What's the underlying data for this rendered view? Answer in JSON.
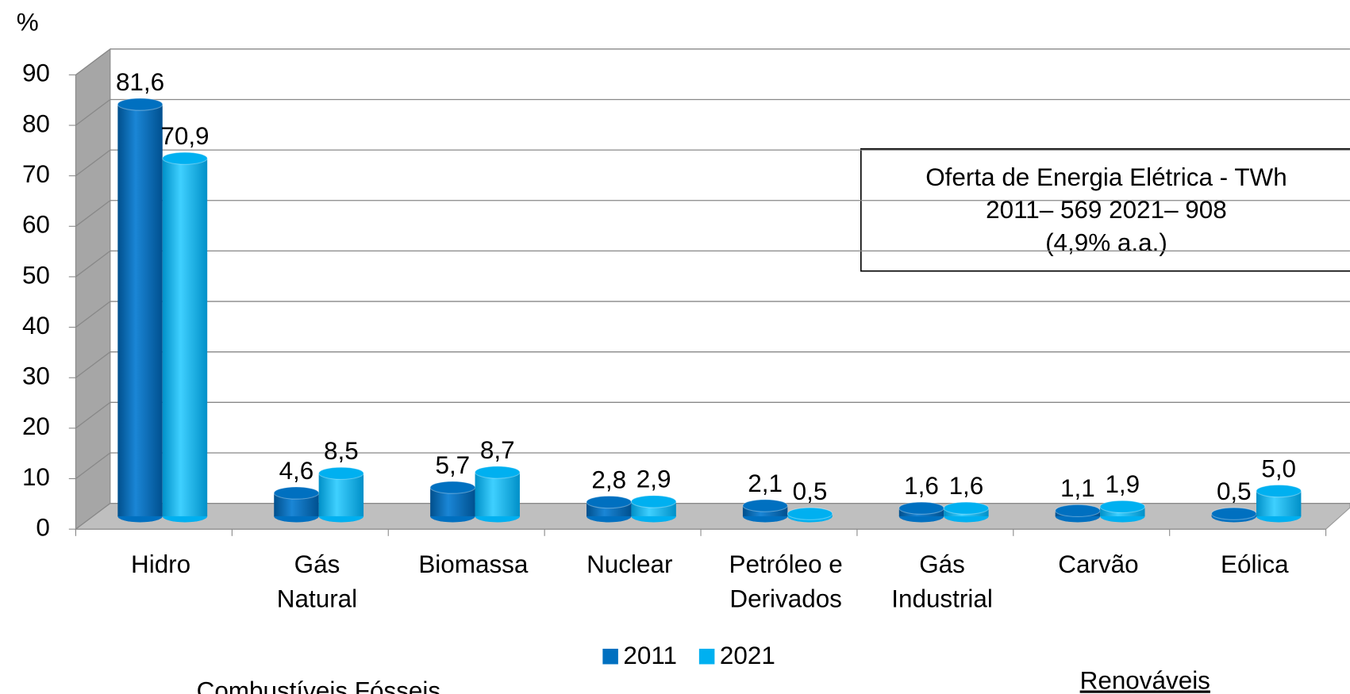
{
  "chart_data": {
    "type": "bar3d",
    "ylabel": "%",
    "categories": [
      [
        "Hidro"
      ],
      [
        "Gás",
        "Natural"
      ],
      [
        "Biomassa"
      ],
      [
        "Nuclear"
      ],
      [
        "Petróleo e",
        "Derivados"
      ],
      [
        "Gás",
        "Industrial"
      ],
      [
        "Carvão"
      ],
      [
        "Eólica"
      ]
    ],
    "series": [
      {
        "name": "2011",
        "color": "#0070c0",
        "values": [
          81.6,
          4.6,
          5.7,
          2.8,
          2.1,
          1.6,
          1.1,
          0.5
        ],
        "value_labels": [
          "81,6",
          "4,6",
          "5,7",
          "2,8",
          "2,1",
          "1,6",
          "1,1",
          "0,5"
        ]
      },
      {
        "name": "2021",
        "color": "#00b0f0",
        "values": [
          70.9,
          8.5,
          8.7,
          2.9,
          0.5,
          1.6,
          1.9,
          5.0
        ],
        "value_labels": [
          "70,9",
          "8,5",
          "8,7",
          "2,9",
          "0,5",
          "1,6",
          "1,9",
          "5,0"
        ]
      }
    ],
    "ylim": [
      0,
      90
    ],
    "yticks": [
      0,
      10,
      20,
      30,
      40,
      50,
      60,
      70,
      80,
      90
    ],
    "grid": true,
    "legend": "bottom",
    "annotation": [
      "Oferta de Energia Elétrica - TWh",
      "2011– 569 2021– 908",
      "(4,9% a.a.)"
    ],
    "group_labels": [
      "Combustíveis Fósseis",
      "Renováveis"
    ]
  }
}
